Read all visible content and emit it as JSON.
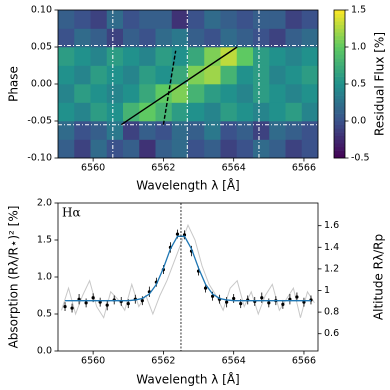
{
  "chart_data": [
    {
      "type": "heatmap",
      "x_label": "Wavelength λ [Å]",
      "y_label": "Phase",
      "xlim": [
        6559.0,
        6566.4
      ],
      "ylim": [
        -0.1,
        0.1
      ],
      "xticks": [
        6560,
        6562,
        6564,
        6566
      ],
      "yticks": [
        {
          "value": -0.1,
          "label": "-0.10"
        },
        {
          "value": -0.05,
          "label": "-0.05"
        },
        {
          "value": 0.0,
          "label": "0.00"
        },
        {
          "value": 0.05,
          "label": "0.05"
        },
        {
          "value": 0.1,
          "label": "0.10"
        }
      ],
      "z": [
        [
          0.1,
          -0.1,
          0.2,
          0.0,
          0.1,
          -0.2,
          0.1,
          0.2,
          0.0,
          0.1,
          -0.1,
          0.0,
          0.2,
          0.1,
          -0.1,
          0.0
        ],
        [
          0.2,
          0.0,
          0.1,
          0.3,
          -0.1,
          0.1,
          0.0,
          0.2,
          0.1,
          0.3,
          0.0,
          0.1,
          -0.1,
          0.2,
          0.1,
          0.0
        ],
        [
          0.5,
          0.4,
          0.6,
          0.5,
          0.8,
          1.0,
          0.8,
          0.6,
          0.5,
          0.4,
          0.6,
          0.5,
          0.4,
          0.5,
          0.6,
          0.4
        ],
        [
          0.4,
          0.6,
          0.5,
          0.4,
          0.5,
          0.7,
          1.0,
          1.1,
          0.8,
          0.6,
          0.5,
          0.4,
          0.6,
          0.5,
          0.4,
          0.5
        ],
        [
          0.5,
          0.4,
          0.6,
          0.5,
          0.4,
          0.6,
          0.5,
          0.7,
          1.1,
          1.2,
          0.8,
          0.5,
          0.6,
          0.4,
          0.5,
          0.6
        ],
        [
          0.6,
          0.5,
          0.4,
          0.6,
          0.5,
          0.4,
          0.6,
          0.5,
          0.7,
          1.1,
          1.3,
          1.0,
          0.6,
          0.5,
          0.4,
          0.5
        ],
        [
          0.0,
          0.2,
          0.1,
          -0.1,
          0.1,
          0.0,
          0.2,
          0.3,
          0.1,
          0.0,
          0.2,
          0.1,
          0.0,
          -0.1,
          0.1,
          0.2
        ],
        [
          0.1,
          0.0,
          -0.1,
          0.2,
          0.0,
          0.1,
          0.1,
          -0.2,
          0.0,
          0.2,
          0.1,
          0.0,
          0.1,
          0.1,
          -0.1,
          0.0
        ]
      ],
      "colorbar": {
        "label": "Residual Flux [%]",
        "lim": [
          -0.5,
          1.5
        ],
        "ticks": [
          {
            "value": -0.5,
            "label": "-0.5"
          },
          {
            "value": 0.0,
            "label": "0.0"
          },
          {
            "value": 0.5,
            "label": "0.5"
          },
          {
            "value": 1.0,
            "label": "1.0"
          },
          {
            "value": 1.5,
            "label": "1.5"
          }
        ]
      },
      "lines": [
        {
          "x": [
            6560.8,
            6564.1
          ],
          "y": [
            -0.055,
            0.05
          ],
          "color": "#000000",
          "dash": false
        },
        {
          "x": [
            6562.0,
            6562.35
          ],
          "y": [
            -0.055,
            0.045
          ],
          "color": "#000000",
          "dash": true
        }
      ],
      "vlines": [
        6560.56,
        6562.68,
        6564.72
      ],
      "hlines": [
        -0.055,
        0.052
      ]
    },
    {
      "type": "line",
      "x_label": "Wavelength λ [Å]",
      "y_label": "Absorption (Rλ/R⋆)² [%]",
      "y2_label": "Altitude Rλ/Rp",
      "annotation": "Hα",
      "xlim": [
        6559.0,
        6566.4
      ],
      "ylim": [
        0.0,
        2.0
      ],
      "xticks": [
        6560,
        6562,
        6564,
        6566
      ],
      "yticks": [
        {
          "value": 0.0,
          "label": "0.0"
        },
        {
          "value": 0.5,
          "label": "0.5"
        },
        {
          "value": 1.0,
          "label": "1.0"
        },
        {
          "value": 1.5,
          "label": "1.5"
        },
        {
          "value": 2.0,
          "label": "2.0"
        }
      ],
      "y2lim": [
        0.44,
        1.81
      ],
      "y2ticks": [
        0.6,
        0.8,
        1.0,
        1.2,
        1.4,
        1.6
      ],
      "vline": 6562.5,
      "series": [
        {
          "style": "raw",
          "color": "#c8c8c8",
          "x": [
            6559.1,
            6559.3,
            6559.5,
            6559.7,
            6559.9,
            6560.1,
            6560.3,
            6560.5,
            6560.7,
            6560.9,
            6561.1,
            6561.3,
            6561.5,
            6561.7,
            6561.9,
            6562.1,
            6562.3,
            6562.5,
            6562.7,
            6562.9,
            6563.1,
            6563.3,
            6563.5,
            6563.7,
            6563.9,
            6564.1,
            6564.3,
            6564.5,
            6564.7,
            6564.9,
            6565.1,
            6565.3,
            6565.5,
            6565.7,
            6565.9,
            6566.1,
            6566.3
          ],
          "values": [
            0.55,
            0.85,
            0.5,
            0.75,
            0.95,
            0.6,
            0.45,
            0.8,
            0.7,
            0.55,
            0.9,
            0.6,
            0.75,
            0.5,
            0.75,
            0.95,
            1.2,
            1.45,
            1.7,
            1.5,
            1.15,
            0.9,
            0.75,
            0.55,
            0.85,
            0.95,
            0.6,
            0.8,
            0.5,
            0.75,
            0.9,
            0.55,
            0.7,
            0.85,
            0.45,
            0.8,
            0.65
          ]
        },
        {
          "style": "points",
          "color": "#000000",
          "x": [
            6559.2,
            6559.4,
            6559.6,
            6559.8,
            6560.0,
            6560.2,
            6560.4,
            6560.6,
            6560.8,
            6561.0,
            6561.2,
            6561.4,
            6561.6,
            6561.8,
            6562.0,
            6562.2,
            6562.4,
            6562.6,
            6562.8,
            6563.0,
            6563.2,
            6563.4,
            6563.6,
            6563.8,
            6564.0,
            6564.2,
            6564.4,
            6564.6,
            6564.8,
            6565.0,
            6565.2,
            6565.4,
            6565.6,
            6565.8,
            6566.0,
            6566.2
          ],
          "values": [
            0.6,
            0.58,
            0.7,
            0.65,
            0.72,
            0.66,
            0.62,
            0.69,
            0.67,
            0.64,
            0.7,
            0.68,
            0.8,
            0.93,
            1.1,
            1.4,
            1.58,
            1.57,
            1.35,
            1.08,
            0.85,
            0.74,
            0.7,
            0.66,
            0.71,
            0.64,
            0.69,
            0.67,
            0.72,
            0.65,
            0.68,
            0.63,
            0.7,
            0.73,
            0.66,
            0.69
          ],
          "errors": [
            0.06,
            0.06,
            0.07,
            0.06,
            0.06,
            0.06,
            0.07,
            0.06,
            0.06,
            0.06,
            0.06,
            0.06,
            0.07,
            0.06,
            0.06,
            0.07,
            0.06,
            0.06,
            0.07,
            0.06,
            0.06,
            0.06,
            0.06,
            0.07,
            0.06,
            0.06,
            0.06,
            0.06,
            0.07,
            0.06,
            0.06,
            0.06,
            0.07,
            0.06,
            0.06,
            0.06
          ]
        },
        {
          "style": "fit",
          "color": "#1f77b4",
          "x": [
            6559.2,
            6559.4,
            6559.6,
            6559.8,
            6560.0,
            6560.2,
            6560.4,
            6560.6,
            6560.8,
            6561.0,
            6561.2,
            6561.4,
            6561.6,
            6561.8,
            6562.0,
            6562.2,
            6562.4,
            6562.6,
            6562.8,
            6563.0,
            6563.2,
            6563.4,
            6563.6,
            6563.8,
            6564.0,
            6564.2,
            6564.4,
            6564.6,
            6564.8,
            6565.0,
            6565.2,
            6565.4,
            6565.6,
            6565.8,
            6566.0,
            6566.2
          ],
          "values": [
            0.68,
            0.68,
            0.68,
            0.68,
            0.68,
            0.68,
            0.68,
            0.68,
            0.68,
            0.68,
            0.69,
            0.71,
            0.77,
            0.9,
            1.12,
            1.38,
            1.55,
            1.55,
            1.38,
            1.12,
            0.9,
            0.77,
            0.71,
            0.69,
            0.68,
            0.68,
            0.68,
            0.68,
            0.68,
            0.68,
            0.68,
            0.68,
            0.68,
            0.68,
            0.68,
            0.68
          ]
        }
      ]
    }
  ]
}
